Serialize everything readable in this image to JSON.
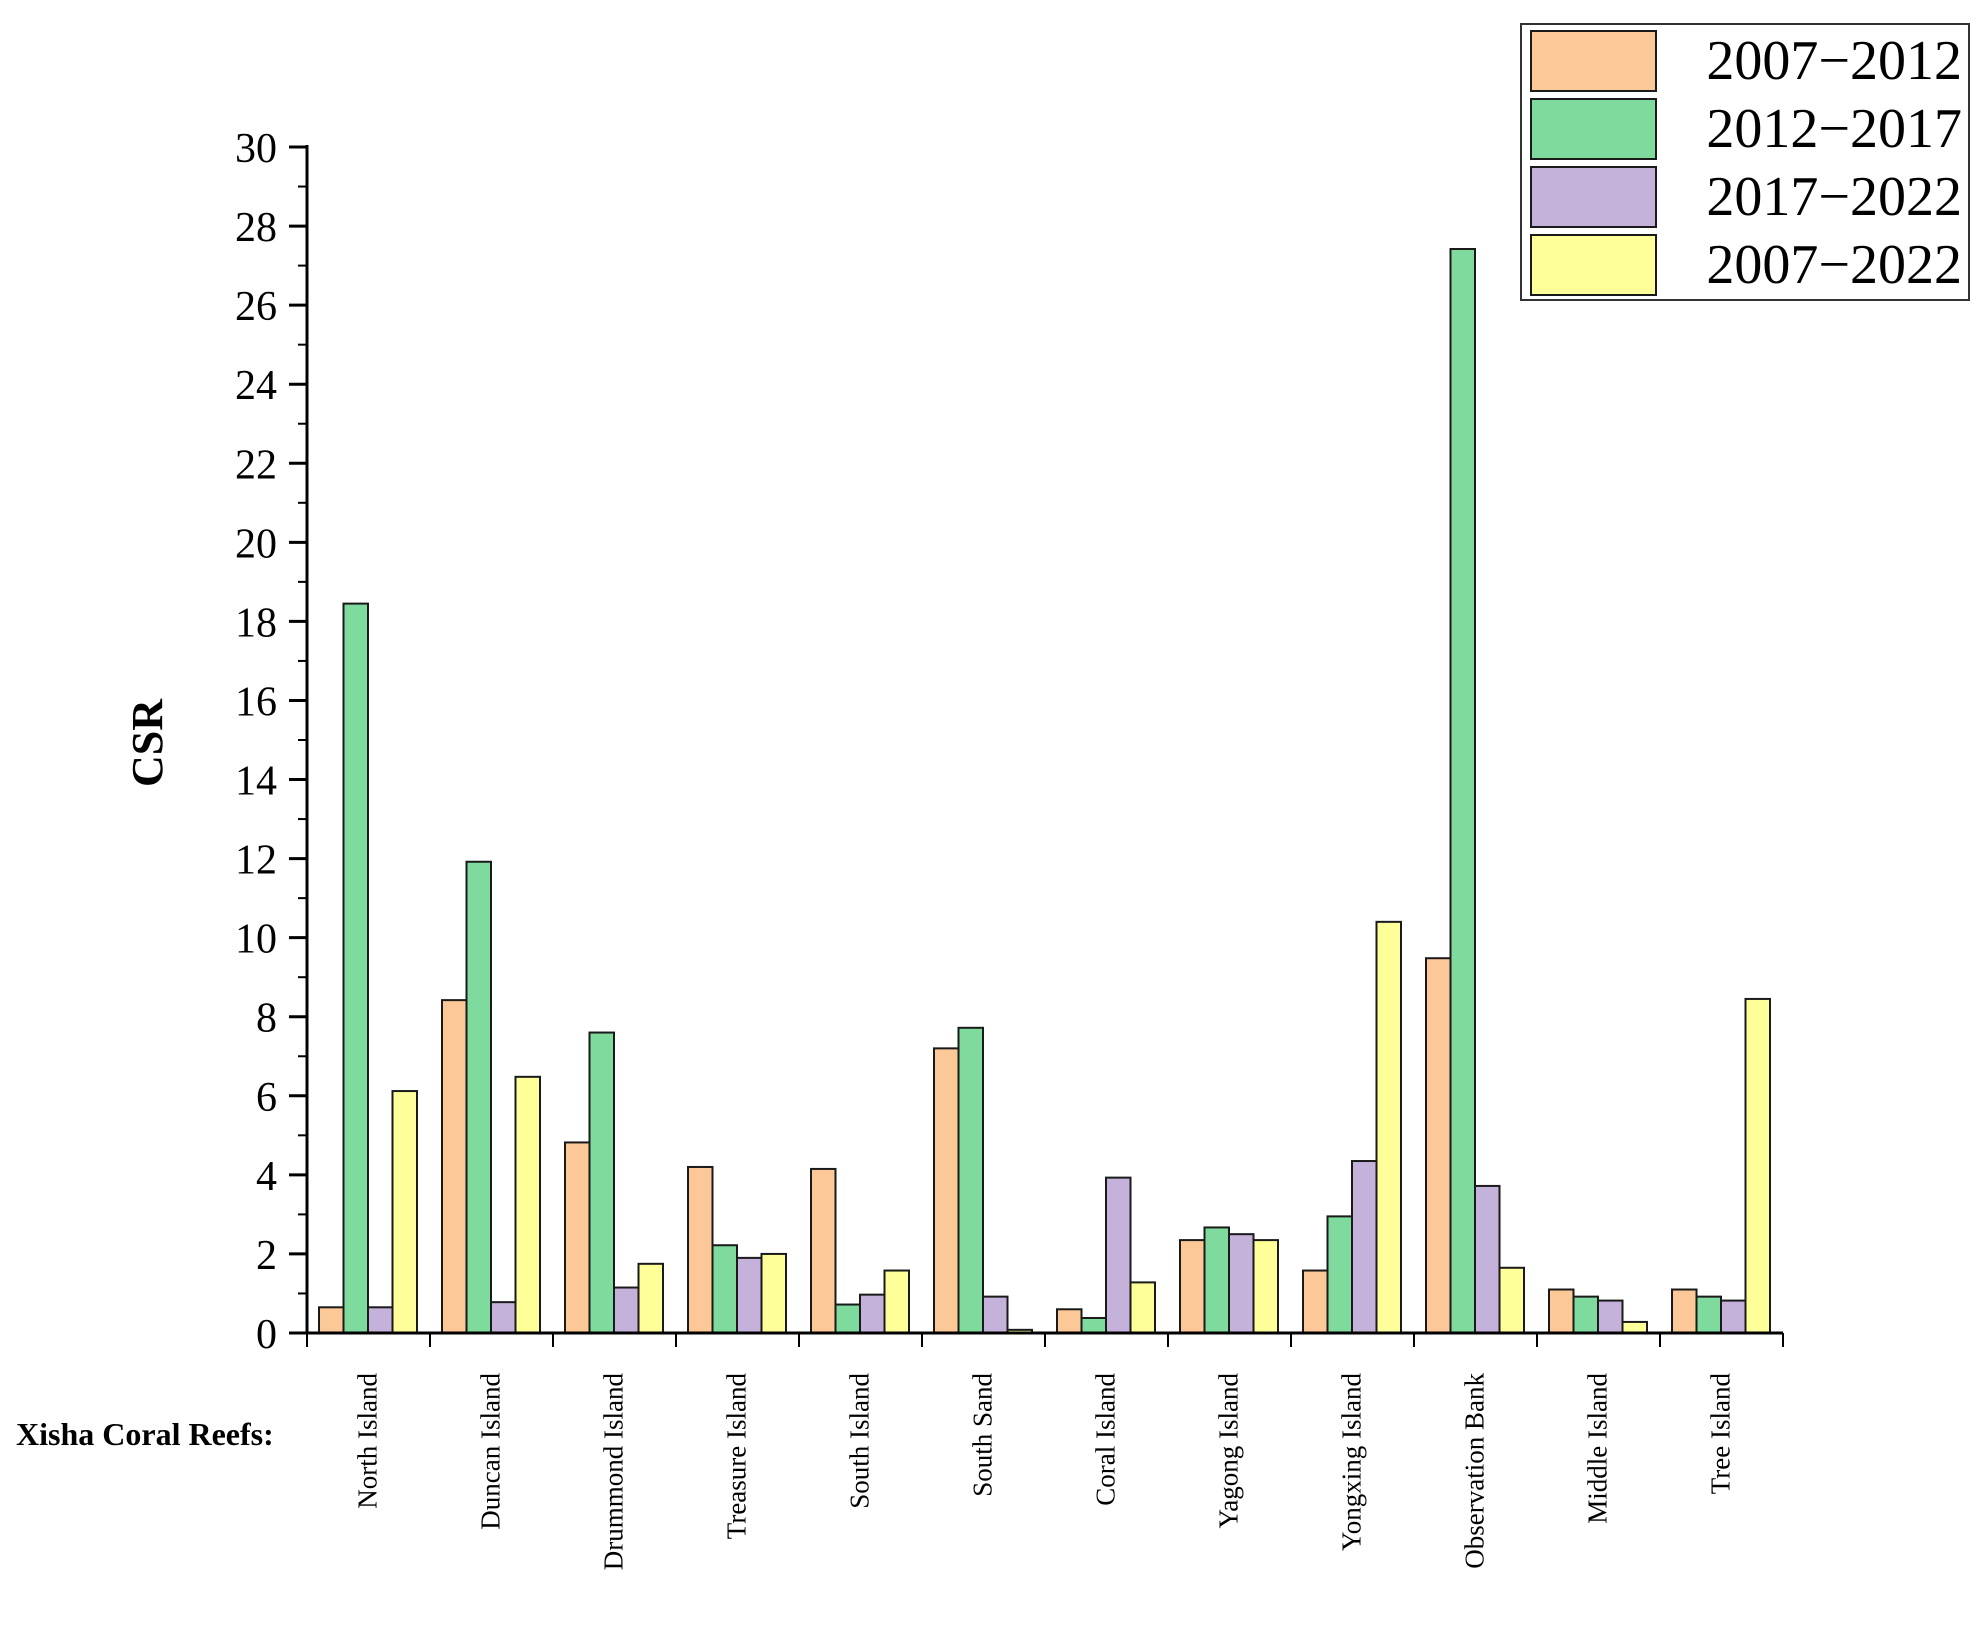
{
  "chart_data": {
    "type": "bar",
    "title": "",
    "xlabel": "Xisha Coral Reefs:",
    "ylabel": "CSR",
    "ylim": [
      0,
      30
    ],
    "yticks": [
      0,
      2,
      4,
      6,
      8,
      10,
      12,
      14,
      16,
      18,
      20,
      22,
      24,
      26,
      28,
      30
    ],
    "legend_position": "top-right",
    "categories": [
      "North Island",
      "Duncan Island",
      "Drummond Island",
      "Treasure Island",
      "South Island",
      "South Sand",
      "Coral Island",
      "Yagong Island",
      "Yongxing Island",
      "Observation Bank",
      "Middle Island",
      "Tree Island"
    ],
    "series": [
      {
        "name": "2007−2012",
        "color": "#FDC898",
        "values": [
          0.65,
          8.42,
          4.82,
          4.2,
          4.15,
          7.2,
          0.6,
          2.35,
          1.58,
          9.48,
          1.1,
          1.1
        ]
      },
      {
        "name": "2012−2017",
        "color": "#7FDA9E",
        "values": [
          18.45,
          11.92,
          7.6,
          2.22,
          0.72,
          7.72,
          0.38,
          2.67,
          2.95,
          27.42,
          0.92,
          0.92
        ]
      },
      {
        "name": "2017−2022",
        "color": "#C4B2DB",
        "values": [
          0.65,
          0.78,
          1.15,
          1.9,
          0.97,
          0.92,
          3.93,
          2.5,
          4.35,
          3.72,
          0.82,
          0.82
        ]
      },
      {
        "name": "2007−2022",
        "color": "#FFFF99",
        "values": [
          6.12,
          6.48,
          1.75,
          2.0,
          1.58,
          0.08,
          1.28,
          2.35,
          10.4,
          1.65,
          0.28,
          8.45
        ]
      }
    ]
  }
}
